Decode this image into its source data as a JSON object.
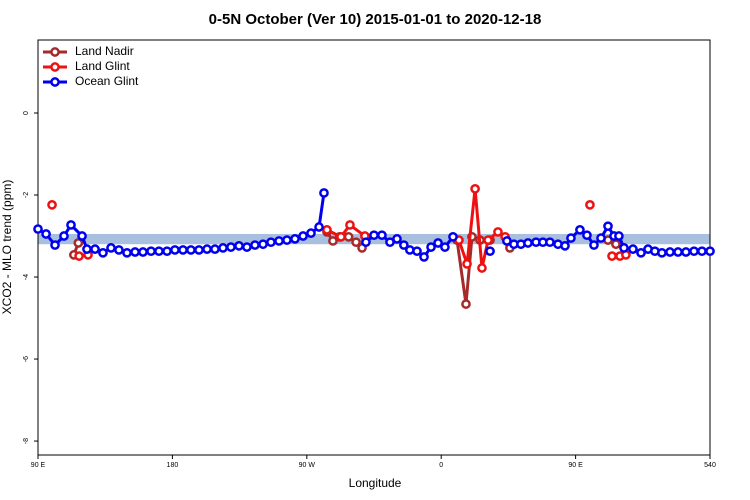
{
  "chart_data": {
    "type": "line",
    "title": "0-5N October (Ver 10)   2015-01-01 to 2020-12-18",
    "x_label": "Longitude",
    "y_label": "XCO2 - MLO trend (ppm)",
    "xlim": [
      90,
      540
    ],
    "ylim": [
      -8.34,
      1.78
    ],
    "xticks": [
      {
        "value": 90,
        "label": "90 E"
      },
      180,
      {
        "value": 270,
        "label": "90 W"
      },
      {
        "value": 360,
        "label": "0"
      },
      {
        "value": 450,
        "label": "90 E"
      },
      540
    ],
    "yticks": [
      0,
      -2,
      -4,
      -6,
      -8
    ],
    "band": [
      -3.2,
      -2.95
    ],
    "band_color": "#a8bfdf",
    "legend": "top-left",
    "series": [
      {
        "name": "Land Nadir",
        "color": "#a52a2a",
        "x": [
          114,
          117,
          null,
          283.5,
          287.5,
          292,
          298,
          303,
          307,
          null,
          370.6,
          376.6,
          380.6,
          386,
          392.7,
          null,
          406,
          null,
          471.7,
          477
        ],
        "values": [
          -3.46,
          -3.17,
          null,
          -2.9,
          -3.12,
          -3.02,
          -3.02,
          -3.15,
          -3.29,
          null,
          -3.1,
          -4.66,
          -3.02,
          -3.1,
          -3.1,
          null,
          -3.29,
          null,
          -3.1,
          -3.2
        ]
      },
      {
        "name": "Land Glint",
        "color": "#ee1111",
        "x": [
          99.4,
          null,
          117.5,
          123.5,
          null,
          283.5,
          292.9,
          298.9,
          308.9,
          null,
          371.9,
          377.3,
          382.7,
          387.3,
          391.4,
          398,
          402.8,
          null,
          459.6,
          null,
          474.4,
          479.7,
          483.7
        ],
        "values": [
          -2.24,
          null,
          -3.49,
          -3.46,
          null,
          -2.85,
          -3.02,
          -2.73,
          -3.0,
          null,
          -3.1,
          -3.68,
          -1.85,
          -3.78,
          -3.1,
          -2.9,
          -3.02,
          null,
          -2.24,
          null,
          -3.49,
          -3.49,
          -3.46
        ]
      },
      {
        "name": "Ocean Glint",
        "color": "#0000ee",
        "x": [
          90,
          95.4,
          101.4,
          107.4,
          112.1,
          119.5,
          122.8,
          128.2,
          133.5,
          138.9,
          144.2,
          149.6,
          155,
          160.3,
          165.7,
          171,
          176.4,
          181.7,
          187.1,
          192.4,
          197.8,
          203.2,
          208.5,
          213.9,
          219.2,
          224.6,
          229.9,
          235.3,
          240.7,
          246,
          251.4,
          256.7,
          262.1,
          267.5,
          272.8,
          278.2,
          281.5,
          null,
          309.6,
          315,
          320.3,
          325.7,
          330.4,
          335,
          339,
          343.8,
          348.5,
          353.2,
          357.9,
          362.5,
          367.9,
          null,
          392.7,
          null,
          404,
          408.7,
          413.4,
          418.1,
          423.5,
          428.1,
          432.8,
          438.2,
          442.9,
          446.9,
          452.9,
          457.6,
          462.3,
          467,
          471.7,
          475.7,
          479,
          482.4,
          488.4,
          493.8,
          498.5,
          503.1,
          507.8,
          513.2,
          518.6,
          523.9,
          529.3,
          534.6,
          540
        ],
        "values": [
          -2.83,
          -2.95,
          -3.22,
          -3.0,
          -2.73,
          -3.0,
          -3.32,
          -3.32,
          -3.41,
          -3.29,
          -3.34,
          -3.41,
          -3.39,
          -3.39,
          -3.37,
          -3.37,
          -3.37,
          -3.34,
          -3.34,
          -3.34,
          -3.34,
          -3.32,
          -3.32,
          -3.29,
          -3.27,
          -3.24,
          -3.27,
          -3.22,
          -3.2,
          -3.15,
          -3.12,
          -3.1,
          -3.07,
          -3.0,
          -2.93,
          -2.78,
          -1.95,
          null,
          -3.15,
          -2.98,
          -2.98,
          -3.15,
          -3.07,
          -3.22,
          -3.34,
          -3.37,
          -3.51,
          -3.27,
          -3.17,
          -3.27,
          -3.02,
          null,
          -3.37,
          null,
          -3.12,
          -3.2,
          -3.2,
          -3.17,
          -3.15,
          -3.15,
          -3.15,
          -3.2,
          -3.24,
          -3.05,
          -2.85,
          -2.98,
          -3.22,
          -3.05,
          -2.76,
          -3.0,
          -3.0,
          -3.29,
          -3.32,
          -3.41,
          -3.32,
          -3.37,
          -3.41,
          -3.39,
          -3.39,
          -3.39,
          -3.37,
          -3.37,
          -3.37
        ]
      }
    ]
  }
}
